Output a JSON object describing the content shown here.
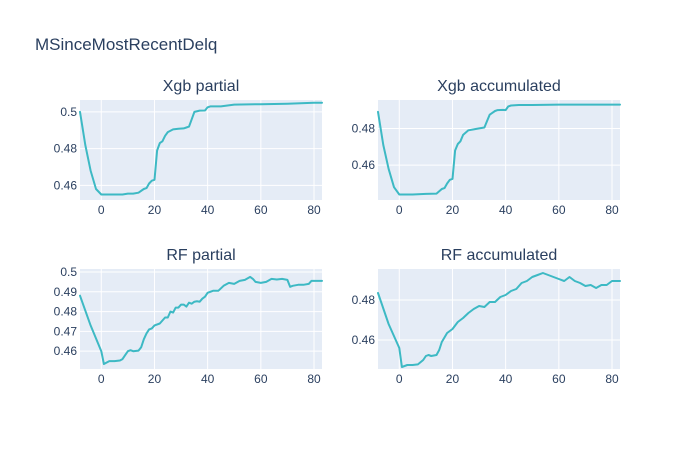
{
  "figure": {
    "title": "MSinceMostRecentDelq"
  },
  "colors": {
    "line": "#3db9c4",
    "plot_bg": "#e5ecf6",
    "grid": "#ffffff",
    "text": "#2a3f5f"
  },
  "chart_data": [
    {
      "type": "line",
      "title": "Xgb partial",
      "xlim": [
        -8,
        83
      ],
      "ylim": [
        0.452,
        0.5065
      ],
      "xticks": [
        0,
        20,
        40,
        60,
        80
      ],
      "xtick_labels": [
        "0",
        "20",
        "40",
        "60",
        "80"
      ],
      "yticks": [
        0.46,
        0.48,
        0.5
      ],
      "ytick_labels": [
        "0.46",
        "0.48",
        "0.5"
      ],
      "series": [
        {
          "x": [
            -8,
            -6,
            -4,
            -2,
            0,
            1,
            5,
            8,
            10,
            12,
            14,
            16,
            17,
            18,
            19,
            20,
            21,
            22,
            23,
            24,
            25,
            27,
            29,
            31,
            32,
            33,
            34,
            35,
            37,
            39,
            40,
            41,
            45,
            50,
            60,
            70,
            80,
            83
          ],
          "y": [
            0.5,
            0.482,
            0.468,
            0.458,
            0.455,
            0.455,
            0.455,
            0.455,
            0.4555,
            0.4555,
            0.456,
            0.458,
            0.4585,
            0.461,
            0.4625,
            0.463,
            0.479,
            0.483,
            0.484,
            0.487,
            0.489,
            0.4905,
            0.4908,
            0.491,
            0.4915,
            0.492,
            0.496,
            0.5,
            0.5007,
            0.5008,
            0.5025,
            0.503,
            0.503,
            0.504,
            0.5042,
            0.5045,
            0.505,
            0.505
          ]
        }
      ]
    },
    {
      "type": "line",
      "title": "Xgb accumulated",
      "xlim": [
        -8,
        83
      ],
      "ylim": [
        0.441,
        0.4955
      ],
      "xticks": [
        0,
        20,
        40,
        60,
        80
      ],
      "xtick_labels": [
        "0",
        "20",
        "40",
        "60",
        "80"
      ],
      "yticks": [
        0.46,
        0.48
      ],
      "ytick_labels": [
        "0.46",
        "0.48"
      ],
      "series": [
        {
          "x": [
            -8,
            -6,
            -4,
            -2,
            0,
            1,
            5,
            10,
            14,
            16,
            17,
            18,
            19,
            20,
            21,
            22,
            23,
            24,
            26,
            28,
            30,
            32,
            33,
            34,
            35,
            36,
            37,
            39,
            40,
            41,
            42,
            45,
            50,
            60,
            70,
            80,
            83
          ],
          "y": [
            0.489,
            0.471,
            0.458,
            0.448,
            0.444,
            0.444,
            0.444,
            0.4443,
            0.4445,
            0.447,
            0.4475,
            0.45,
            0.452,
            0.4525,
            0.468,
            0.4715,
            0.473,
            0.4765,
            0.479,
            0.4795,
            0.48,
            0.4805,
            0.484,
            0.4875,
            0.4885,
            0.4895,
            0.49,
            0.4901,
            0.49,
            0.492,
            0.4925,
            0.4928,
            0.4928,
            0.493,
            0.493,
            0.493,
            0.493
          ]
        }
      ]
    },
    {
      "type": "line",
      "title": "RF partial",
      "xlim": [
        -8,
        83
      ],
      "ylim": [
        0.451,
        0.5015
      ],
      "xticks": [
        0,
        20,
        40,
        60,
        80
      ],
      "xtick_labels": [
        "0",
        "20",
        "40",
        "60",
        "80"
      ],
      "yticks": [
        0.46,
        0.47,
        0.48,
        0.49,
        0.5
      ],
      "ytick_labels": [
        "0.46",
        "0.47",
        "0.48",
        "0.49",
        "0.5"
      ],
      "series": [
        {
          "x": [
            -8,
            -4,
            0,
            1,
            3,
            5,
            7,
            8,
            9,
            10,
            11,
            12,
            14,
            15,
            16,
            17,
            18,
            19,
            20,
            22,
            24,
            25,
            26,
            27,
            28,
            29,
            30,
            31,
            32,
            33,
            34,
            35,
            36,
            37,
            38,
            39,
            40,
            42,
            44,
            46,
            48,
            50,
            52,
            54,
            56,
            57,
            58,
            60,
            62,
            64,
            66,
            68,
            70,
            71,
            72,
            74,
            76,
            78,
            79,
            80,
            83
          ],
          "y": [
            0.488,
            0.473,
            0.46,
            0.4535,
            0.455,
            0.455,
            0.4553,
            0.456,
            0.458,
            0.46,
            0.4605,
            0.46,
            0.4603,
            0.462,
            0.466,
            0.469,
            0.471,
            0.4715,
            0.473,
            0.474,
            0.477,
            0.477,
            0.48,
            0.4795,
            0.482,
            0.482,
            0.4835,
            0.4835,
            0.4825,
            0.4845,
            0.484,
            0.485,
            0.4852,
            0.485,
            0.4865,
            0.4875,
            0.4895,
            0.4905,
            0.4905,
            0.493,
            0.4945,
            0.494,
            0.4955,
            0.496,
            0.4975,
            0.4965,
            0.495,
            0.4945,
            0.495,
            0.4965,
            0.4962,
            0.4965,
            0.496,
            0.4925,
            0.493,
            0.4935,
            0.4935,
            0.494,
            0.4955,
            0.4955,
            0.4955
          ]
        }
      ]
    },
    {
      "type": "line",
      "title": "RF accumulated",
      "xlim": [
        -8,
        83
      ],
      "ylim": [
        0.4455,
        0.4955
      ],
      "xticks": [
        0,
        20,
        40,
        60,
        80
      ],
      "xtick_labels": [
        "0",
        "20",
        "40",
        "60",
        "80"
      ],
      "yticks": [
        0.46,
        0.48
      ],
      "ytick_labels": [
        "0.46",
        "0.48"
      ],
      "series": [
        {
          "x": [
            -8,
            -4,
            0,
            1,
            3,
            5,
            7,
            9,
            10,
            11,
            12,
            14,
            15,
            16,
            18,
            20,
            22,
            24,
            26,
            28,
            30,
            32,
            34,
            36,
            38,
            40,
            42,
            44,
            46,
            48,
            50,
            52,
            54,
            56,
            58,
            60,
            62,
            64,
            66,
            68,
            70,
            72,
            74,
            76,
            78,
            80,
            82,
            83
          ],
          "y": [
            0.4835,
            0.468,
            0.456,
            0.4465,
            0.4475,
            0.4475,
            0.4478,
            0.45,
            0.452,
            0.4525,
            0.452,
            0.4525,
            0.455,
            0.459,
            0.4635,
            0.4655,
            0.469,
            0.471,
            0.4735,
            0.4755,
            0.477,
            0.4765,
            0.479,
            0.479,
            0.4815,
            0.4825,
            0.4845,
            0.4855,
            0.4885,
            0.4895,
            0.4915,
            0.4925,
            0.4935,
            0.4925,
            0.4915,
            0.4905,
            0.4895,
            0.4915,
            0.4895,
            0.4885,
            0.487,
            0.4875,
            0.486,
            0.4875,
            0.4875,
            0.4895,
            0.4895,
            0.4895
          ]
        }
      ]
    }
  ]
}
